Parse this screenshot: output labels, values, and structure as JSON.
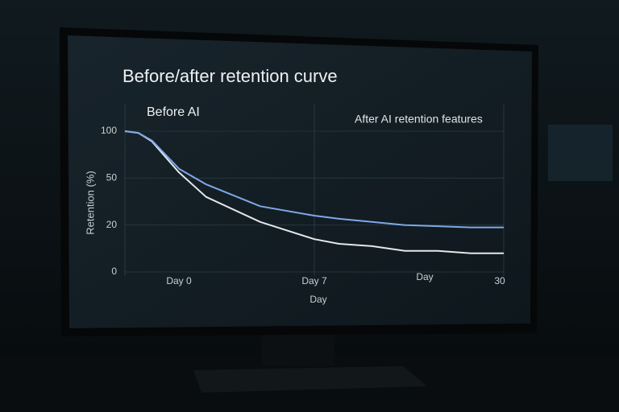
{
  "chart_data": {
    "type": "line",
    "title": "Before/after retention curve",
    "y_label": "Retention (%)",
    "x_label": "Day",
    "annotations": [
      "Day"
    ],
    "x": [
      0,
      0.5,
      1,
      2,
      3,
      5,
      7,
      10,
      14,
      18,
      22,
      26,
      30
    ],
    "series": [
      {
        "name": "Before AI",
        "color": "#e4e7ea",
        "values": [
          100,
          98,
          89,
          56,
          38,
          22,
          14,
          12,
          11,
          9,
          9,
          8,
          8
        ]
      },
      {
        "name": "After AI retention features",
        "color": "#7fa8e6",
        "values": [
          100,
          98,
          90,
          60,
          46,
          32,
          26,
          24,
          22,
          20,
          19.5,
          19,
          19
        ]
      }
    ],
    "xlim": [
      0,
      30
    ],
    "xticks": [
      {
        "value": 0,
        "label": "Day 0"
      },
      {
        "value": 7,
        "label": "Day 7"
      },
      30
    ],
    "ylim": [
      0,
      100
    ],
    "yticks": [
      0,
      20,
      50,
      100
    ],
    "grid": true
  }
}
